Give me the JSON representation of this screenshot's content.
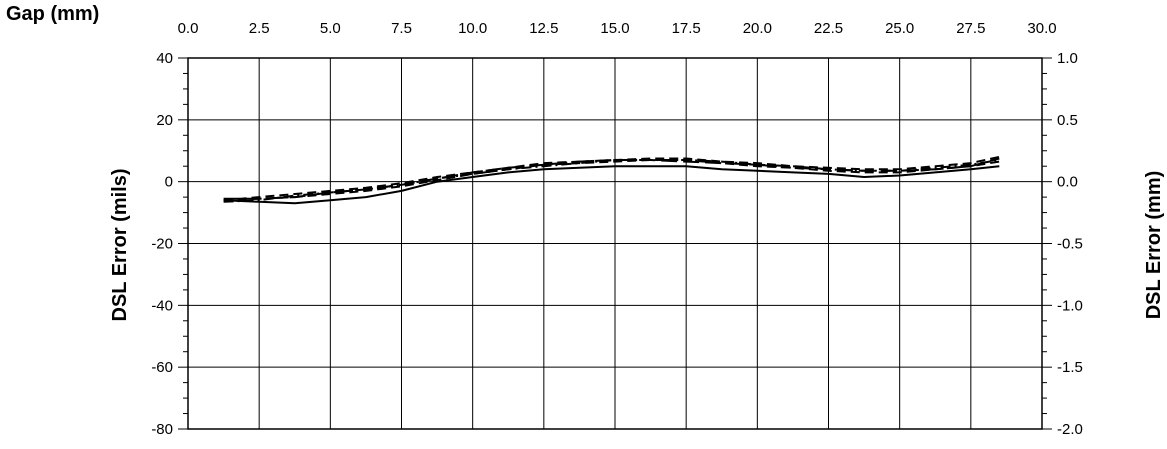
{
  "chart_data": {
    "type": "line",
    "title": "",
    "x_axis": {
      "label": "Gap (mm)",
      "range": [
        0,
        30
      ],
      "ticks": [
        0.0,
        2.5,
        5.0,
        7.5,
        10.0,
        12.5,
        15.0,
        17.5,
        20.0,
        22.5,
        25.0,
        27.5,
        30.0
      ],
      "tick_labels": [
        "0.0",
        "2.5",
        "5.0",
        "7.5",
        "10.0",
        "12.5",
        "15.0",
        "17.5",
        "20.0",
        "22.5",
        "25.0",
        "27.5",
        "30.0"
      ],
      "position": "top"
    },
    "y_axis_left": {
      "label": "DSL Error (mils)",
      "range": [
        -80,
        40
      ],
      "ticks": [
        40,
        20,
        0,
        -20,
        -40,
        -60,
        -80
      ],
      "tick_labels": [
        "40",
        "20",
        "0",
        "-20",
        "-40",
        "-60",
        "-80"
      ]
    },
    "y_axis_right": {
      "label": "DSL Error (mm)",
      "range": [
        -2.0,
        1.0
      ],
      "ticks": [
        1.0,
        0.5,
        0.0,
        -0.5,
        -1.0,
        -1.5,
        -2.0
      ],
      "tick_labels": [
        "1.0",
        "0.5",
        "0.0",
        "-0.5",
        "-1.0",
        "-1.5",
        "-2.0"
      ]
    },
    "grid": true,
    "legend": "none",
    "series": [
      {
        "style": "solid",
        "color": "#000000",
        "x": [
          1.25,
          2.5,
          3.75,
          5.0,
          6.25,
          7.5,
          8.75,
          10.0,
          11.25,
          12.5,
          13.75,
          15.0,
          16.25,
          17.5,
          18.75,
          20.0,
          21.25,
          22.5,
          23.75,
          25.0,
          26.25,
          27.5,
          28.5
        ],
        "y": [
          -6,
          -6.5,
          -7,
          -6,
          -5,
          -3,
          0,
          1.5,
          3,
          4,
          4.5,
          5,
          5,
          5,
          4,
          3.5,
          3,
          2.5,
          1.5,
          2,
          3,
          4,
          5
        ]
      },
      {
        "style": "dashed",
        "color": "#000000",
        "x": [
          1.25,
          2.5,
          3.75,
          5.0,
          6.25,
          7.5,
          8.75,
          10.0,
          11.25,
          12.5,
          13.75,
          15.0,
          16.25,
          17.5,
          18.75,
          20.0,
          21.25,
          22.5,
          23.75,
          25.0,
          26.25,
          27.5,
          28.5
        ],
        "y": [
          -6,
          -5.5,
          -5,
          -4,
          -3,
          -1.5,
          0.5,
          2.5,
          4,
          5.5,
          6,
          6.5,
          7,
          7,
          6,
          5,
          4.5,
          3.5,
          3,
          3,
          4,
          5,
          6.5
        ]
      },
      {
        "style": "dashed",
        "color": "#000000",
        "x": [
          1.25,
          2.5,
          3.75,
          5.0,
          6.25,
          7.5,
          8.75,
          10.0,
          11.25,
          12.5,
          13.75,
          15.0,
          16.25,
          17.5,
          18.75,
          20.0,
          21.25,
          22.5,
          23.75,
          25.0,
          26.25,
          27.5,
          28.5
        ],
        "y": [
          -6,
          -5,
          -4,
          -3,
          -2,
          -0.5,
          1.5,
          3,
          4.5,
          6,
          6.5,
          7,
          7.5,
          7.5,
          6.5,
          6,
          5,
          4.5,
          4,
          4,
          5,
          6,
          8
        ]
      },
      {
        "style": "dash-dot",
        "color": "#000000",
        "x": [
          1.25,
          2.5,
          3.75,
          5.0,
          6.25,
          7.5,
          8.75,
          10.0,
          11.25,
          12.5,
          13.75,
          15.0,
          16.25,
          17.5,
          18.75,
          20.0,
          21.25,
          22.5,
          23.75,
          25.0,
          26.25,
          27.5,
          28.5
        ],
        "y": [
          -6.5,
          -6,
          -4.5,
          -3.5,
          -2.5,
          -1,
          1,
          2.5,
          4,
          5,
          6,
          7,
          7,
          7,
          6.5,
          5.5,
          4.5,
          4,
          3.5,
          3.5,
          4.5,
          5.5,
          7
        ]
      },
      {
        "style": "long-dash",
        "color": "#000000",
        "x": [
          1.25,
          2.5,
          3.75,
          5.0,
          6.25,
          7.5,
          8.75,
          10.0,
          11.25,
          12.5,
          13.75,
          15.0,
          16.25,
          17.5,
          18.75,
          20.0,
          21.25,
          22.5,
          23.75,
          25.0,
          26.25,
          27.5,
          28.5
        ],
        "y": [
          -5.5,
          -5.5,
          -5,
          -3.5,
          -2.5,
          -1,
          1,
          3,
          4.5,
          5.5,
          6.5,
          7,
          7,
          6.5,
          6,
          5.5,
          5,
          4,
          3.5,
          3.5,
          4,
          5,
          7.5
        ]
      }
    ]
  }
}
